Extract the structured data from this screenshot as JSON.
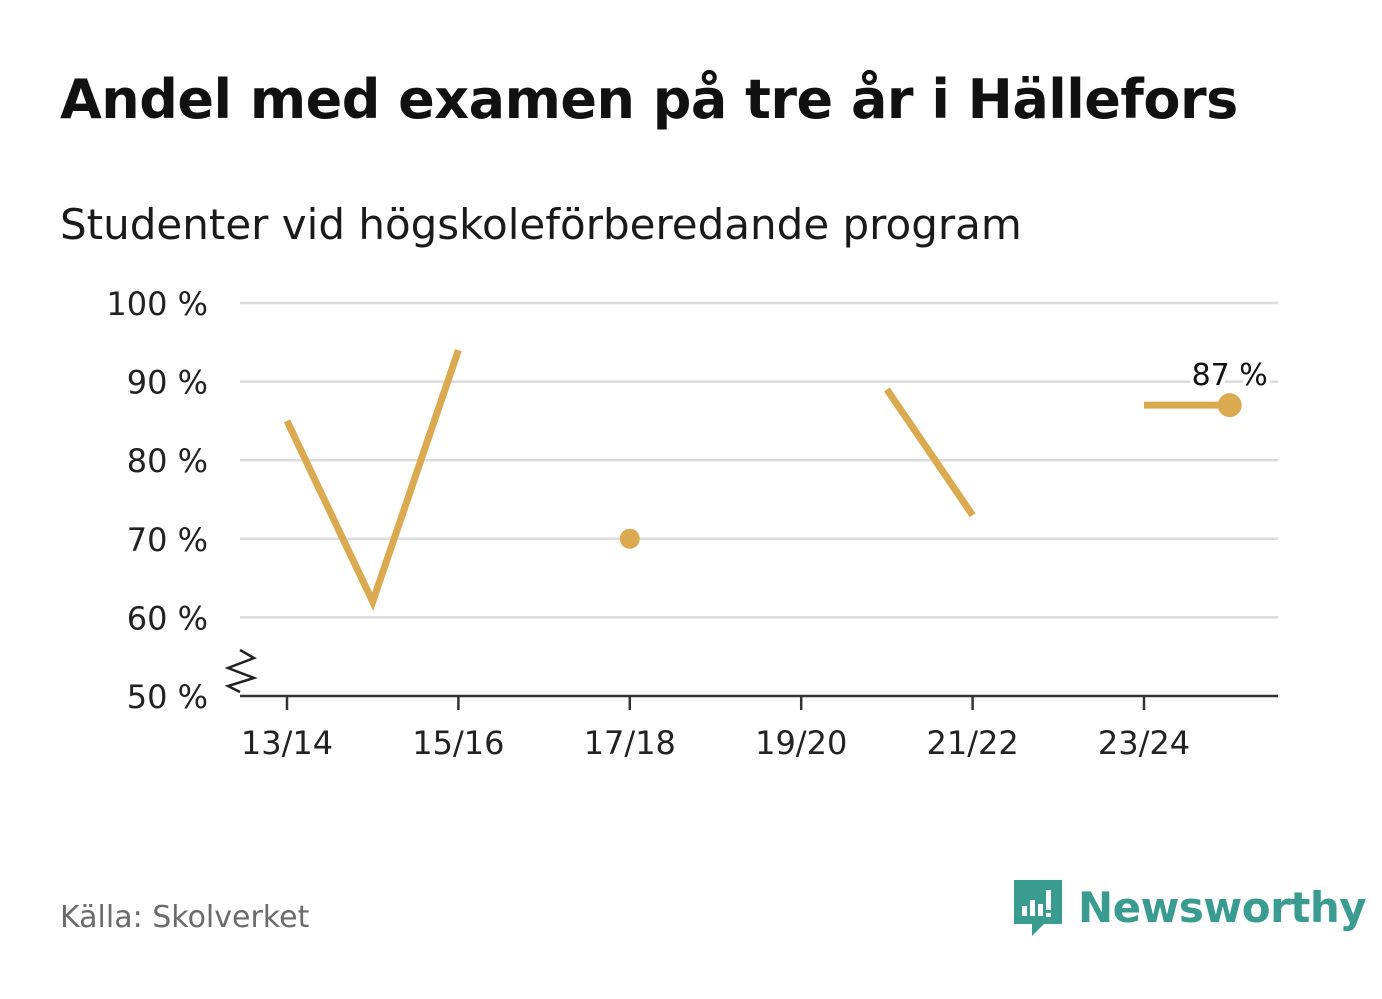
{
  "title": "Andel med examen på tre år i Hällefors",
  "subtitle": "Studenter vid högskoleförberedande program",
  "source": "Källa: Skolverket",
  "brand": {
    "name": "Newsworthy",
    "color": "#3a9c90",
    "icon": "chat-bar-chart-icon"
  },
  "chart_data": {
    "type": "line",
    "title": "Andel med examen på tre år i Hällefors",
    "subtitle": "Studenter vid högskoleförberedande program",
    "x": [
      "13/14",
      "14/15",
      "15/16",
      "16/17",
      "17/18",
      "18/19",
      "19/20",
      "20/21",
      "21/22",
      "22/23",
      "23/24",
      "24/25"
    ],
    "x_tick_labels": [
      "13/14",
      "15/16",
      "17/18",
      "19/20",
      "21/22",
      "23/24"
    ],
    "series": [
      {
        "color": "#dba94f",
        "values": [
          85,
          62,
          94,
          null,
          70,
          null,
          null,
          89,
          73,
          null,
          87,
          87
        ]
      }
    ],
    "ylim": [
      50,
      100
    ],
    "y_ticks": [
      50,
      60,
      70,
      80,
      90,
      100
    ],
    "y_tick_labels": [
      "50 %",
      "60 %",
      "70 %",
      "80 %",
      "90 %",
      "100 %"
    ],
    "y_axis_break": true,
    "grid": true,
    "annotation": {
      "label": "87 %",
      "index": 11
    },
    "legend": "none"
  }
}
